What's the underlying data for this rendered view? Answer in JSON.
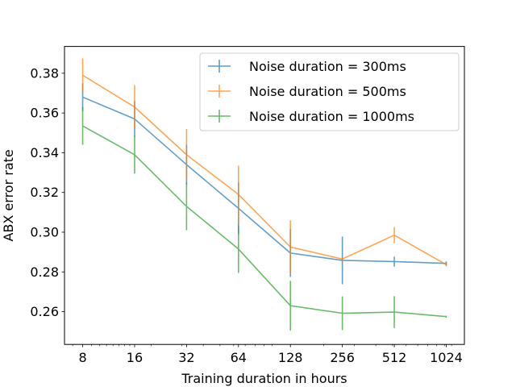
{
  "chart_data": {
    "type": "line",
    "x_scale": "log2",
    "x": [
      8,
      16,
      32,
      64,
      128,
      256,
      512,
      1024
    ],
    "x_tick_labels": [
      "8",
      "16",
      "32",
      "64",
      "128",
      "256",
      "512",
      "1024"
    ],
    "xlabel": "Training duration in hours",
    "ylabel": "ABX error rate",
    "ylim": [
      0.2435,
      0.3935
    ],
    "y_ticks": [
      0.26,
      0.28,
      0.3,
      0.32,
      0.34,
      0.36,
      0.38
    ],
    "y_tick_labels": [
      "0.26",
      "0.28",
      "0.30",
      "0.32",
      "0.34",
      "0.36",
      "0.38"
    ],
    "grid": false,
    "legend_position": "top-right",
    "series": [
      {
        "name": "Noise duration = 300ms",
        "color": "#1f77b4",
        "values": [
          0.368,
          0.357,
          0.334,
          0.312,
          0.2895,
          0.2858,
          0.2852,
          0.2843
        ],
        "errors": [
          0.007,
          0.009,
          0.01,
          0.013,
          0.012,
          0.012,
          0.0025,
          0.001
        ]
      },
      {
        "name": "Noise duration = 500ms",
        "color": "#ff7f0e",
        "values": [
          0.379,
          0.363,
          0.339,
          0.319,
          0.2925,
          0.2865,
          0.2985,
          0.2837
        ],
        "errors": [
          0.0085,
          0.011,
          0.013,
          0.0145,
          0.0135,
          0.001,
          0.004,
          0.001
        ]
      },
      {
        "name": "Noise duration = 1000ms",
        "color": "#2ca02c",
        "values": [
          0.3535,
          0.339,
          0.313,
          0.2915,
          0.263,
          0.2592,
          0.2598,
          0.2575
        ],
        "errors": [
          0.0095,
          0.0095,
          0.012,
          0.012,
          0.0125,
          0.0085,
          0.008,
          0.0005
        ]
      }
    ]
  }
}
